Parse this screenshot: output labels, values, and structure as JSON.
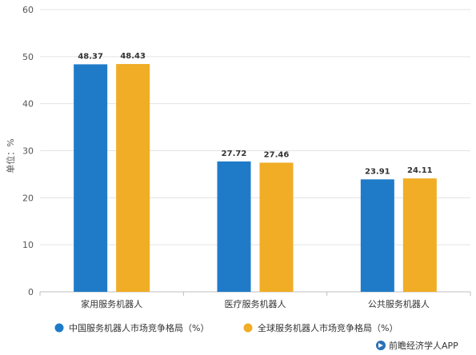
{
  "chart_data": {
    "type": "bar",
    "categories": [
      "家用服务机器人",
      "医疗服务机器人",
      "公共服务机器人"
    ],
    "series": [
      {
        "name": "中国服务机器人市场竞争格局（%）",
        "values": [
          48.37,
          27.72,
          23.91
        ],
        "color": "#1f7bc8"
      },
      {
        "name": "全球服务机器人市场竞争格局（%）",
        "values": [
          48.43,
          27.46,
          24.11
        ],
        "color": "#f0ad25"
      }
    ],
    "ylabel": "单位：%",
    "ylim": [
      0,
      60
    ],
    "yticks": [
      0,
      10,
      20,
      30,
      40,
      50,
      60
    ],
    "grid": true,
    "legend_position": "bottom-left"
  },
  "source_credit": "前瞻经济学人APP"
}
